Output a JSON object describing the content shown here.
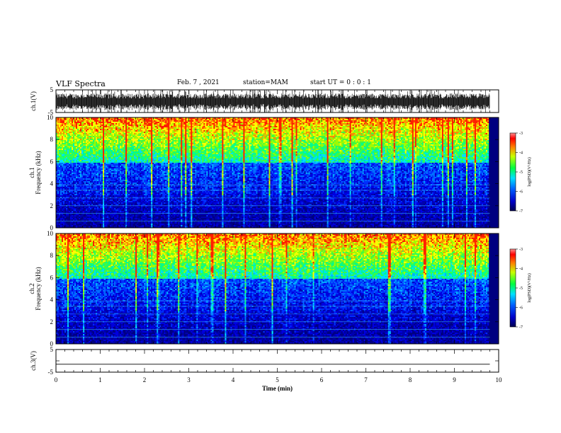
{
  "header": {
    "title": "VLF Spectra",
    "date": "Feb. 7 , 2021",
    "station": "station=MAM",
    "start": "start UT = 0 : 0 : 1"
  },
  "colors": {
    "spectrum_low": "#000080",
    "spectrum_mid": "#00ff40",
    "spectrum_high": "#ff0000"
  },
  "chart_data": [
    {
      "type": "line",
      "name": "ch1-waveform",
      "ylabel": "ch.1(V)",
      "ylim": [
        -5,
        5
      ],
      "yticks": [
        "5",
        "-5"
      ],
      "xlim": [
        0,
        10
      ]
    },
    {
      "type": "heatmap",
      "name": "ch1-spectrogram",
      "ylabel_top": "ch.1",
      "ylabel": "Frequency (kHz)",
      "ylim": [
        0,
        10
      ],
      "yticks": [
        "0",
        "2",
        "4",
        "6",
        "8",
        "10"
      ],
      "xlim": [
        0,
        10
      ],
      "colorbar": {
        "label": "log(PSD)(V²/Hz)",
        "ticks": [
          "-3",
          "-4",
          "-5",
          "-6",
          "-7"
        ],
        "range": [
          -7,
          -3
        ]
      }
    },
    {
      "type": "heatmap",
      "name": "ch2-spectrogram",
      "ylabel_top": "ch.2",
      "ylabel": "Frequency (kHz)",
      "ylim": [
        0,
        10
      ],
      "yticks": [
        "0",
        "2",
        "4",
        "6",
        "8",
        "10"
      ],
      "xlim": [
        0,
        10
      ],
      "colorbar": {
        "label": "log(PSD)(V²/Hz)",
        "ticks": [
          "-3",
          "-4",
          "-5",
          "-6",
          "-7"
        ],
        "range": [
          -7,
          -3
        ]
      }
    },
    {
      "type": "line",
      "name": "ch3-waveform",
      "ylabel": "ch.3(V)",
      "ylim": [
        -5,
        5
      ],
      "yticks": [
        "5",
        "0",
        "-5"
      ],
      "xlim": [
        0,
        10
      ],
      "x": [
        0,
        9.8
      ],
      "y": [
        -1.5,
        -1.5
      ],
      "xlabel": "Time (min)",
      "xticks": [
        "0",
        "1",
        "2",
        "3",
        "4",
        "5",
        "6",
        "7",
        "8",
        "9",
        "10"
      ]
    }
  ]
}
